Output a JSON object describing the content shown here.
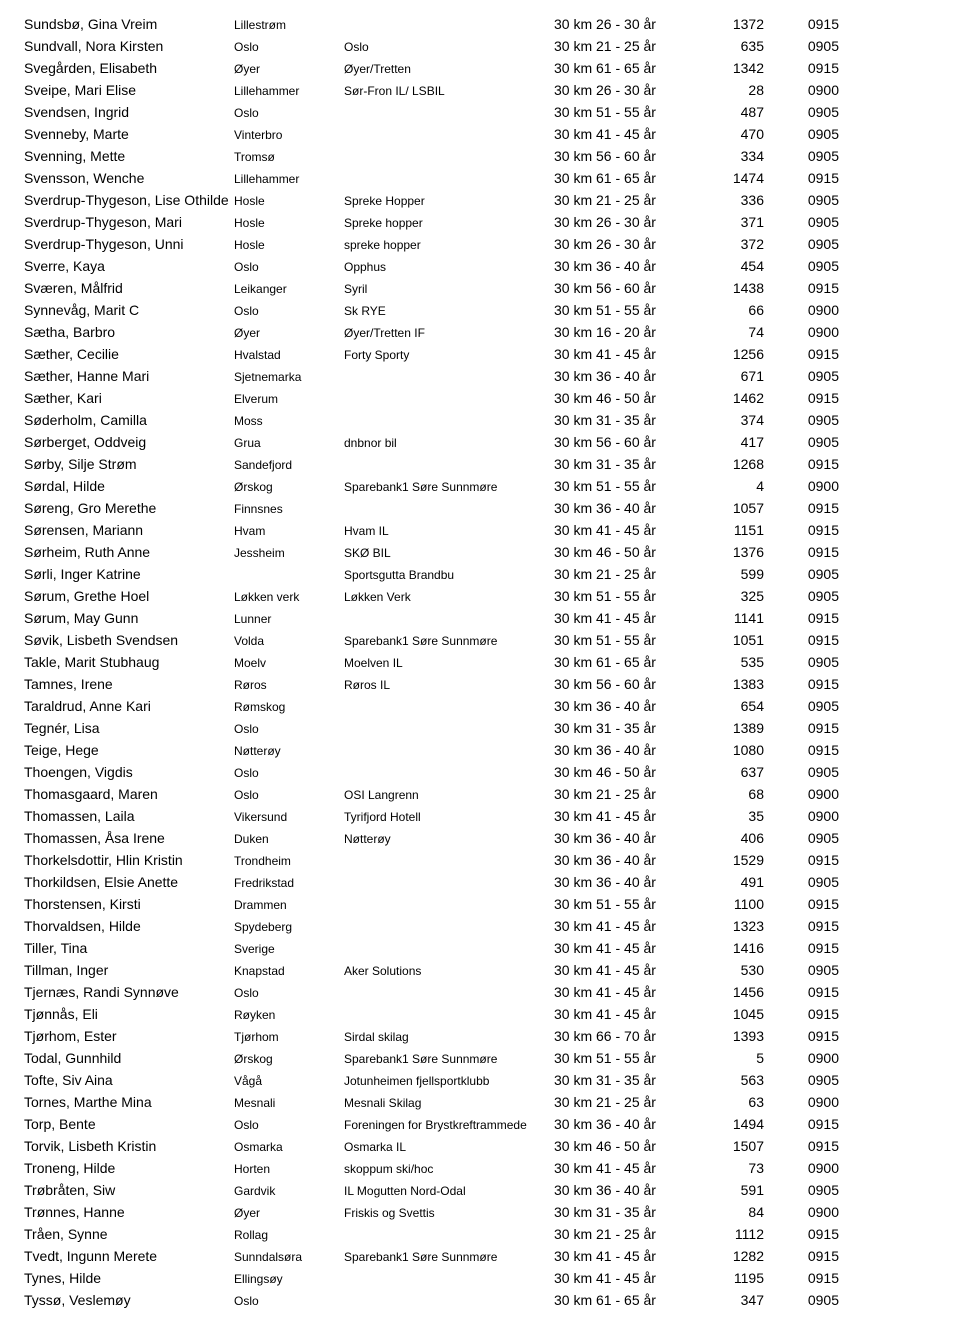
{
  "rows": [
    {
      "name": "Sundsbø, Gina Vreim",
      "loc": "Lillestrøm",
      "club": "",
      "cat": "30 km 26 - 30 år",
      "bib": "1372",
      "start": "0915"
    },
    {
      "name": "Sundvall, Nora Kirsten",
      "loc": "Oslo",
      "club": "Oslo",
      "cat": "30 km 21 - 25 år",
      "bib": "635",
      "start": "0905"
    },
    {
      "name": "Svegården, Elisabeth",
      "loc": "Øyer",
      "club": "Øyer/Tretten",
      "cat": "30 km 61 - 65 år",
      "bib": "1342",
      "start": "0915"
    },
    {
      "name": "Sveipe, Mari Elise",
      "loc": "Lillehammer",
      "club": "Sør-Fron IL/ LSBIL",
      "cat": "30 km 26 - 30 år",
      "bib": "28",
      "start": "0900"
    },
    {
      "name": "Svendsen, Ingrid",
      "loc": "Oslo",
      "club": "",
      "cat": "30 km 51 - 55 år",
      "bib": "487",
      "start": "0905"
    },
    {
      "name": "Svenneby, Marte",
      "loc": "Vinterbro",
      "club": "",
      "cat": "30 km 41 - 45 år",
      "bib": "470",
      "start": "0905"
    },
    {
      "name": "Svenning, Mette",
      "loc": "Tromsø",
      "club": "",
      "cat": "30 km 56 - 60 år",
      "bib": "334",
      "start": "0905"
    },
    {
      "name": "Svensson, Wenche",
      "loc": "Lillehammer",
      "club": "",
      "cat": "30 km 61 - 65 år",
      "bib": "1474",
      "start": "0915"
    },
    {
      "name": "Sverdrup-Thygeson, Lise Othilde",
      "loc": "Hosle",
      "club": "Spreke Hopper",
      "cat": "30 km 21 - 25 år",
      "bib": "336",
      "start": "0905"
    },
    {
      "name": "Sverdrup-Thygeson, Mari",
      "loc": "Hosle",
      "club": "Spreke hopper",
      "cat": "30 km 26 - 30 år",
      "bib": "371",
      "start": "0905"
    },
    {
      "name": "Sverdrup-Thygeson, Unni",
      "loc": "Hosle",
      "club": "spreke hopper",
      "cat": "30 km 26 - 30 år",
      "bib": "372",
      "start": "0905"
    },
    {
      "name": "Sverre, Kaya",
      "loc": "Oslo",
      "club": "Opphus",
      "cat": "30 km 36 - 40 år",
      "bib": "454",
      "start": "0905"
    },
    {
      "name": "Sværen, Målfrid",
      "loc": "Leikanger",
      "club": "Syril",
      "cat": "30 km 56 - 60 år",
      "bib": "1438",
      "start": "0915"
    },
    {
      "name": "Synnevåg, Marit C",
      "loc": "Oslo",
      "club": "Sk RYE",
      "cat": "30 km 51 - 55 år",
      "bib": "66",
      "start": "0900"
    },
    {
      "name": "Sætha, Barbro",
      "loc": "Øyer",
      "club": "Øyer/Tretten IF",
      "cat": "30 km 16 - 20 år",
      "bib": "74",
      "start": "0900"
    },
    {
      "name": "Sæther, Cecilie",
      "loc": "Hvalstad",
      "club": "Forty Sporty",
      "cat": "30 km 41 - 45 år",
      "bib": "1256",
      "start": "0915"
    },
    {
      "name": "Sæther, Hanne Mari",
      "loc": "Sjetnemarka",
      "club": "",
      "cat": "30 km 36 - 40 år",
      "bib": "671",
      "start": "0905"
    },
    {
      "name": "Sæther, Kari",
      "loc": "Elverum",
      "club": "",
      "cat": "30 km 46 - 50 år",
      "bib": "1462",
      "start": "0915"
    },
    {
      "name": "Søderholm, Camilla",
      "loc": "Moss",
      "club": "",
      "cat": "30 km 31 - 35 år",
      "bib": "374",
      "start": "0905"
    },
    {
      "name": "Sørberget, Oddveig",
      "loc": "Grua",
      "club": "dnbnor bil",
      "cat": "30 km 56 - 60 år",
      "bib": "417",
      "start": "0905"
    },
    {
      "name": "Sørby, Silje Strøm",
      "loc": "Sandefjord",
      "club": "",
      "cat": "30 km 31 - 35 år",
      "bib": "1268",
      "start": "0915"
    },
    {
      "name": "Sørdal, Hilde",
      "loc": "Ørskog",
      "club": "Sparebank1 Søre Sunnmøre",
      "cat": "30 km 51 - 55 år",
      "bib": "4",
      "start": "0900"
    },
    {
      "name": "Søreng, Gro Merethe",
      "loc": "Finnsnes",
      "club": "",
      "cat": "30 km 36 - 40 år",
      "bib": "1057",
      "start": "0915"
    },
    {
      "name": "Sørensen, Mariann",
      "loc": "Hvam",
      "club": "Hvam IL",
      "cat": "30 km 41 - 45 år",
      "bib": "1151",
      "start": "0915"
    },
    {
      "name": "Sørheim, Ruth Anne",
      "loc": "Jessheim",
      "club": "SKØ BIL",
      "cat": "30 km 46 - 50 år",
      "bib": "1376",
      "start": "0915"
    },
    {
      "name": "Sørli, Inger Katrine",
      "loc": "",
      "club": "Sportsgutta Brandbu",
      "cat": "30 km 21 - 25 år",
      "bib": "599",
      "start": "0905"
    },
    {
      "name": "Sørum, Grethe Hoel",
      "loc": "Løkken verk",
      "club": "Løkken Verk",
      "cat": "30 km 51 - 55 år",
      "bib": "325",
      "start": "0905"
    },
    {
      "name": "Sørum, May Gunn",
      "loc": "Lunner",
      "club": "",
      "cat": "30 km 41 - 45 år",
      "bib": "1141",
      "start": "0915"
    },
    {
      "name": "Søvik, Lisbeth Svendsen",
      "loc": "Volda",
      "club": "Sparebank1 Søre Sunnmøre",
      "cat": "30 km 51 - 55 år",
      "bib": "1051",
      "start": "0915"
    },
    {
      "name": "Takle, Marit Stubhaug",
      "loc": "Moelv",
      "club": "Moelven IL",
      "cat": "30 km 61 - 65 år",
      "bib": "535",
      "start": "0905"
    },
    {
      "name": "Tamnes, Irene",
      "loc": "Røros",
      "club": "Røros IL",
      "cat": "30 km 56 - 60 år",
      "bib": "1383",
      "start": "0915"
    },
    {
      "name": "Taraldrud, Anne Kari",
      "loc": "Rømskog",
      "club": "",
      "cat": "30 km 36 - 40 år",
      "bib": "654",
      "start": "0905"
    },
    {
      "name": "Tegnér, Lisa",
      "loc": "Oslo",
      "club": "",
      "cat": "30 km 31 - 35 år",
      "bib": "1389",
      "start": "0915"
    },
    {
      "name": "Teige, Hege",
      "loc": "Nøtterøy",
      "club": "",
      "cat": "30 km 36 - 40 år",
      "bib": "1080",
      "start": "0915"
    },
    {
      "name": "Thoengen, Vigdis",
      "loc": "Oslo",
      "club": "",
      "cat": "30 km 46 - 50 år",
      "bib": "637",
      "start": "0905"
    },
    {
      "name": "Thomasgaard, Maren",
      "loc": "Oslo",
      "club": "OSI Langrenn",
      "cat": "30 km 21 - 25 år",
      "bib": "68",
      "start": "0900"
    },
    {
      "name": "Thomassen, Laila",
      "loc": "Vikersund",
      "club": "Tyrifjord Hotell",
      "cat": "30 km 41 - 45 år",
      "bib": "35",
      "start": "0900"
    },
    {
      "name": "Thomassen, Åsa Irene",
      "loc": "Duken",
      "club": "Nøtterøy",
      "cat": "30 km 36 - 40 år",
      "bib": "406",
      "start": "0905"
    },
    {
      "name": "Thorkelsdottir, Hlin Kristin",
      "loc": "Trondheim",
      "club": "",
      "cat": "30 km 36 - 40 år",
      "bib": "1529",
      "start": "0915"
    },
    {
      "name": "Thorkildsen, Elsie Anette",
      "loc": "Fredrikstad",
      "club": "",
      "cat": "30 km 36 - 40 år",
      "bib": "491",
      "start": "0905"
    },
    {
      "name": "Thorstensen, Kirsti",
      "loc": "Drammen",
      "club": "",
      "cat": "30 km 51 - 55 år",
      "bib": "1100",
      "start": "0915"
    },
    {
      "name": "Thorvaldsen, Hilde",
      "loc": "Spydeberg",
      "club": "",
      "cat": "30 km 41 - 45 år",
      "bib": "1323",
      "start": "0915"
    },
    {
      "name": "Tiller, Tina",
      "loc": "Sverige",
      "club": "",
      "cat": "30 km 41 - 45 år",
      "bib": "1416",
      "start": "0915"
    },
    {
      "name": "Tillman, Inger",
      "loc": "Knapstad",
      "club": "Aker Solutions",
      "cat": "30 km 41 - 45 år",
      "bib": "530",
      "start": "0905"
    },
    {
      "name": "Tjernæs, Randi Synnøve",
      "loc": "Oslo",
      "club": "",
      "cat": "30 km 41 - 45 år",
      "bib": "1456",
      "start": "0915"
    },
    {
      "name": "Tjønnås, Eli",
      "loc": "Røyken",
      "club": "",
      "cat": "30 km 41 - 45 år",
      "bib": "1045",
      "start": "0915"
    },
    {
      "name": "Tjørhom, Ester",
      "loc": "Tjørhom",
      "club": "Sirdal skilag",
      "cat": "30 km 66 - 70 år",
      "bib": "1393",
      "start": "0915"
    },
    {
      "name": "Todal, Gunnhild",
      "loc": "Ørskog",
      "club": "Sparebank1 Søre Sunnmøre",
      "cat": "30 km 51 - 55 år",
      "bib": "5",
      "start": "0900"
    },
    {
      "name": "Tofte, Siv Aina",
      "loc": "Vågå",
      "club": "Jotunheimen fjellsportklubb",
      "cat": "30 km 31 - 35 år",
      "bib": "563",
      "start": "0905"
    },
    {
      "name": "Tornes, Marthe Mina",
      "loc": "Mesnali",
      "club": "Mesnali Skilag",
      "cat": "30 km 21 - 25 år",
      "bib": "63",
      "start": "0900"
    },
    {
      "name": "Torp, Bente",
      "loc": "Oslo",
      "club": "Foreningen for Brystkreftrammede",
      "cat": "30 km 36 - 40 år",
      "bib": "1494",
      "start": "0915"
    },
    {
      "name": "Torvik, Lisbeth Kristin",
      "loc": "Osmarka",
      "club": "Osmarka IL",
      "cat": "30 km 46 - 50 år",
      "bib": "1507",
      "start": "0915"
    },
    {
      "name": "Troneng, Hilde",
      "loc": "Horten",
      "club": "skoppum ski/hoc",
      "cat": "30 km 41 - 45 år",
      "bib": "73",
      "start": "0900"
    },
    {
      "name": "Trøbråten, Siw",
      "loc": "Gardvik",
      "club": "IL Mogutten Nord-Odal",
      "cat": "30 km 36 - 40 år",
      "bib": "591",
      "start": "0905"
    },
    {
      "name": "Trønnes, Hanne",
      "loc": "Øyer",
      "club": "Friskis og Svettis",
      "cat": "30 km 31 - 35 år",
      "bib": "84",
      "start": "0900"
    },
    {
      "name": "Tråen, Synne",
      "loc": "Rollag",
      "club": "",
      "cat": "30 km 21 - 25 år",
      "bib": "1112",
      "start": "0915"
    },
    {
      "name": "Tvedt, Ingunn Merete",
      "loc": "Sunndalsøra",
      "club": "Sparebank1 Søre Sunnmøre",
      "cat": "30 km 41 - 45 år",
      "bib": "1282",
      "start": "0915"
    },
    {
      "name": "Tynes, Hilde",
      "loc": "Ellingsøy",
      "club": "",
      "cat": "30 km 41 - 45 år",
      "bib": "1195",
      "start": "0915"
    },
    {
      "name": "Tyssø, Veslemøy",
      "loc": "Oslo",
      "club": "",
      "cat": "30 km 61 - 65 år",
      "bib": "347",
      "start": "0905"
    }
  ]
}
